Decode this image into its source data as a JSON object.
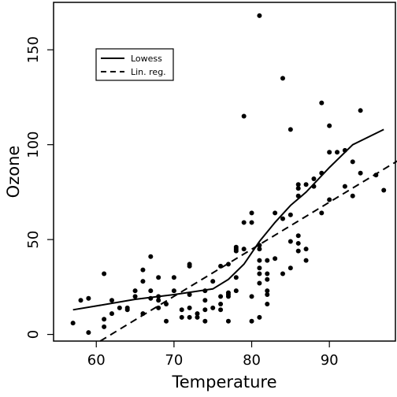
{
  "chart_data": {
    "type": "scatter",
    "xlabel": "Temperature",
    "ylabel": "Ozone",
    "xlim": [
      54.5,
      98.5
    ],
    "ylim": [
      -3.5,
      175
    ],
    "xticks": [
      60,
      70,
      80,
      90
    ],
    "yticks": [
      0,
      50,
      100,
      150
    ],
    "grid": false,
    "legend": {
      "position": "top-left",
      "entries": [
        {
          "label": "Lowess",
          "style": "solid"
        },
        {
          "label": "Lin. reg.",
          "style": "dashed"
        }
      ]
    },
    "points": [
      [
        57,
        6
      ],
      [
        58,
        18
      ],
      [
        59,
        19
      ],
      [
        59,
        1
      ],
      [
        61,
        32
      ],
      [
        61,
        8
      ],
      [
        61,
        4
      ],
      [
        62,
        18
      ],
      [
        62,
        11
      ],
      [
        63,
        14
      ],
      [
        64,
        14
      ],
      [
        64,
        13
      ],
      [
        65,
        23
      ],
      [
        65,
        20
      ],
      [
        66,
        34
      ],
      [
        66,
        28
      ],
      [
        66,
        11
      ],
      [
        67,
        41
      ],
      [
        67,
        23
      ],
      [
        67,
        19
      ],
      [
        68,
        30
      ],
      [
        68,
        20
      ],
      [
        68,
        18
      ],
      [
        68,
        14
      ],
      [
        69,
        16
      ],
      [
        69,
        7
      ],
      [
        70,
        30
      ],
      [
        70,
        23
      ],
      [
        71,
        13
      ],
      [
        71,
        9
      ],
      [
        72,
        37
      ],
      [
        72,
        36
      ],
      [
        72,
        21
      ],
      [
        72,
        14
      ],
      [
        72,
        9
      ],
      [
        73,
        9
      ],
      [
        73,
        11
      ],
      [
        74,
        23
      ],
      [
        74,
        18
      ],
      [
        74,
        7
      ],
      [
        74,
        13
      ],
      [
        75,
        14
      ],
      [
        75,
        28
      ],
      [
        76,
        13
      ],
      [
        76,
        20
      ],
      [
        76,
        16
      ],
      [
        76,
        36
      ],
      [
        77,
        37
      ],
      [
        77,
        22
      ],
      [
        77,
        21
      ],
      [
        77,
        20
      ],
      [
        77,
        7
      ],
      [
        78,
        46
      ],
      [
        78,
        45
      ],
      [
        78,
        44
      ],
      [
        78,
        30
      ],
      [
        78,
        23
      ],
      [
        79,
        59
      ],
      [
        79,
        115
      ],
      [
        79,
        45
      ],
      [
        80,
        64
      ],
      [
        80,
        59
      ],
      [
        80,
        20
      ],
      [
        80,
        7
      ],
      [
        81,
        168
      ],
      [
        81,
        47
      ],
      [
        81,
        45
      ],
      [
        81,
        39
      ],
      [
        81,
        35
      ],
      [
        81,
        32
      ],
      [
        81,
        27
      ],
      [
        81,
        9
      ],
      [
        82,
        23
      ],
      [
        82,
        16
      ],
      [
        82,
        32
      ],
      [
        82,
        29
      ],
      [
        82,
        21
      ],
      [
        82,
        39
      ],
      [
        83,
        64
      ],
      [
        83,
        40
      ],
      [
        84,
        135
      ],
      [
        84,
        61
      ],
      [
        84,
        32
      ],
      [
        85,
        108
      ],
      [
        85,
        63
      ],
      [
        85,
        49
      ],
      [
        85,
        35
      ],
      [
        86,
        79
      ],
      [
        86,
        77
      ],
      [
        86,
        73
      ],
      [
        86,
        52
      ],
      [
        86,
        48
      ],
      [
        86,
        44
      ],
      [
        87,
        79
      ],
      [
        87,
        45
      ],
      [
        87,
        39
      ],
      [
        88,
        78
      ],
      [
        88,
        82
      ],
      [
        89,
        85
      ],
      [
        89,
        122
      ],
      [
        89,
        64
      ],
      [
        90,
        96
      ],
      [
        90,
        110
      ],
      [
        90,
        71
      ],
      [
        91,
        96
      ],
      [
        92,
        97
      ],
      [
        92,
        78
      ],
      [
        93,
        91
      ],
      [
        93,
        73
      ],
      [
        94,
        118
      ],
      [
        94,
        85
      ],
      [
        96,
        84
      ],
      [
        97,
        76
      ]
    ],
    "series": [
      {
        "name": "Lowess",
        "style": "solid",
        "x": [
          57,
          60,
          65,
          70,
          75,
          77,
          79,
          81,
          83,
          85,
          87,
          90,
          93,
          97
        ],
        "y": [
          13,
          15,
          18.5,
          21,
          24,
          29,
          37,
          49,
          59,
          68,
          75,
          88,
          100,
          108
        ]
      },
      {
        "name": "Lin. reg.",
        "style": "dashed",
        "x": [
          60.5,
          99
        ],
        "y": [
          -3.5,
          92
        ]
      }
    ]
  }
}
